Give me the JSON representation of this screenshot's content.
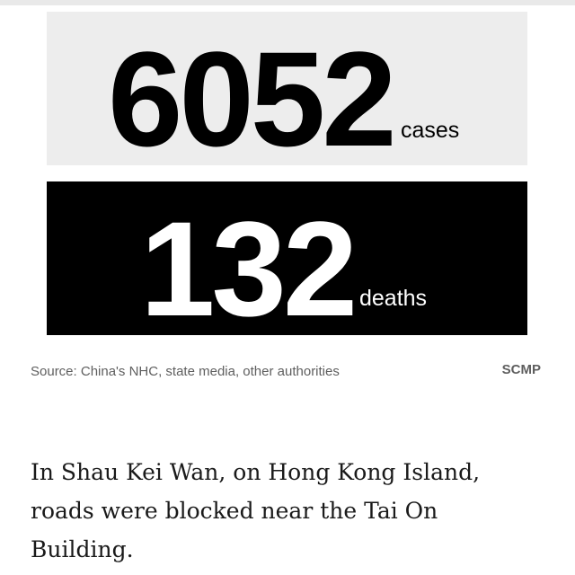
{
  "stats": {
    "cases": {
      "number": "6052",
      "unit": "cases"
    },
    "deaths": {
      "number": "132",
      "unit": "deaths"
    }
  },
  "source": "Source: China's NHC, state media, other authorities",
  "brand": "SCMP",
  "article": {
    "lines": [
      "In Shau Kei Wan, on Hong Kong Island,",
      "roads were blocked near the Tai On",
      "Building."
    ]
  },
  "colors": {
    "cases_box": "#ededed",
    "deaths_box": "#000000",
    "source_text": "#5f5f5f",
    "article_text": "#1a1a1a"
  }
}
